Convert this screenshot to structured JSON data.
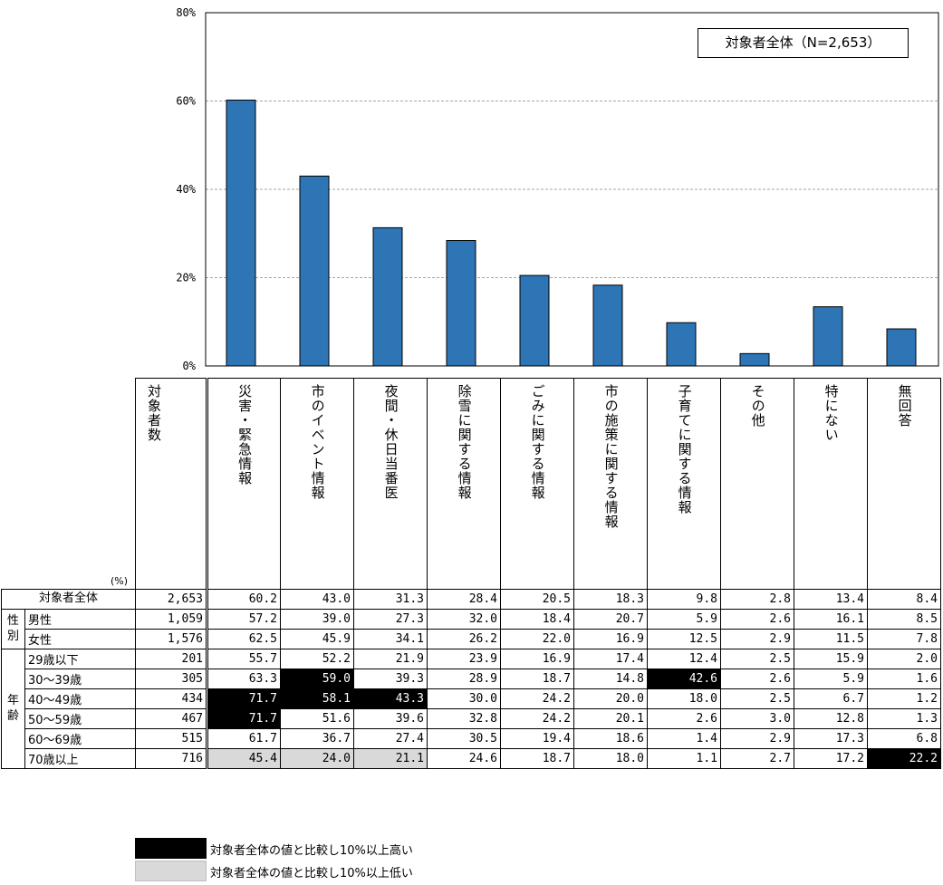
{
  "chart_data": {
    "type": "bar",
    "annotation": "対象者全体（N=2,653）",
    "categories": [
      "災害・緊急情報",
      "市のイベント情報",
      "夜間・休日当番医",
      "除雪に関する情報",
      "ごみに関する情報",
      "市の施策に関する情報",
      "子育てに関する情報",
      "その他",
      "特にない",
      "無回答"
    ],
    "values": [
      60.2,
      43.0,
      31.3,
      28.4,
      20.5,
      18.3,
      9.8,
      2.8,
      13.4,
      8.4
    ],
    "ylim": [
      0,
      80
    ],
    "yticks": [
      0,
      20,
      40,
      60,
      80
    ],
    "ytick_labels": [
      "0%",
      "20%",
      "40%",
      "60%",
      "80%"
    ],
    "grid": true,
    "bar_color": "#2e75b6"
  },
  "table": {
    "unit": "(%)",
    "count_header": "対象者数",
    "rows": [
      {
        "group": "",
        "label": "対象者全体",
        "count": "2,653",
        "values": [
          "60.2",
          "43.0",
          "31.3",
          "28.4",
          "20.5",
          "18.3",
          "9.8",
          "2.8",
          "13.4",
          "8.4"
        ],
        "flags": [
          "",
          "",
          "",
          "",
          "",
          "",
          "",
          "",
          "",
          ""
        ]
      },
      {
        "group": "性別",
        "label": "男性",
        "count": "1,059",
        "values": [
          "57.2",
          "39.0",
          "27.3",
          "32.0",
          "18.4",
          "20.7",
          "5.9",
          "2.6",
          "16.1",
          "8.5"
        ],
        "flags": [
          "",
          "",
          "",
          "",
          "",
          "",
          "",
          "",
          "",
          ""
        ]
      },
      {
        "group": "",
        "label": "女性",
        "count": "1,576",
        "values": [
          "62.5",
          "45.9",
          "34.1",
          "26.2",
          "22.0",
          "16.9",
          "12.5",
          "2.9",
          "11.5",
          "7.8"
        ],
        "flags": [
          "",
          "",
          "",
          "",
          "",
          "",
          "",
          "",
          "",
          ""
        ]
      },
      {
        "group": "年齢",
        "label": "29歳以下",
        "count": "201",
        "values": [
          "55.7",
          "52.2",
          "21.9",
          "23.9",
          "16.9",
          "17.4",
          "12.4",
          "2.5",
          "15.9",
          "2.0"
        ],
        "flags": [
          "",
          "",
          "",
          "",
          "",
          "",
          "",
          "",
          "",
          ""
        ]
      },
      {
        "group": "",
        "label": "30～39歳",
        "count": "305",
        "values": [
          "63.3",
          "59.0",
          "39.3",
          "28.9",
          "18.7",
          "14.8",
          "42.6",
          "2.6",
          "5.9",
          "1.6"
        ],
        "flags": [
          "",
          "hi",
          "",
          "",
          "",
          "",
          "hi",
          "",
          "",
          ""
        ]
      },
      {
        "group": "",
        "label": "40～49歳",
        "count": "434",
        "values": [
          "71.7",
          "58.1",
          "43.3",
          "30.0",
          "24.2",
          "20.0",
          "18.0",
          "2.5",
          "6.7",
          "1.2"
        ],
        "flags": [
          "hi",
          "hi",
          "hi",
          "",
          "",
          "",
          "",
          "",
          "",
          ""
        ]
      },
      {
        "group": "",
        "label": "50～59歳",
        "count": "467",
        "values": [
          "71.7",
          "51.6",
          "39.6",
          "32.8",
          "24.2",
          "20.1",
          "2.6",
          "3.0",
          "12.8",
          "1.3"
        ],
        "flags": [
          "hi",
          "",
          "",
          "",
          "",
          "",
          "",
          "",
          "",
          ""
        ]
      },
      {
        "group": "",
        "label": "60～69歳",
        "count": "515",
        "values": [
          "61.7",
          "36.7",
          "27.4",
          "30.5",
          "19.4",
          "18.6",
          "1.4",
          "2.9",
          "17.3",
          "6.8"
        ],
        "flags": [
          "",
          "",
          "",
          "",
          "",
          "",
          "",
          "",
          "",
          ""
        ]
      },
      {
        "group": "",
        "label": "70歳以上",
        "count": "716",
        "values": [
          "45.4",
          "24.0",
          "21.1",
          "24.6",
          "18.7",
          "18.0",
          "1.1",
          "2.7",
          "17.2",
          "22.2"
        ],
        "flags": [
          "lo",
          "lo",
          "lo",
          "",
          "",
          "",
          "",
          "",
          "",
          "hi"
        ]
      }
    ]
  },
  "legend": {
    "items": [
      {
        "label": "対象者全体の値と比較し10%以上高い",
        "color": "#000000"
      },
      {
        "label": "対象者全体の値と比較し10%以上低い",
        "color": "#d9d9d9"
      }
    ]
  }
}
